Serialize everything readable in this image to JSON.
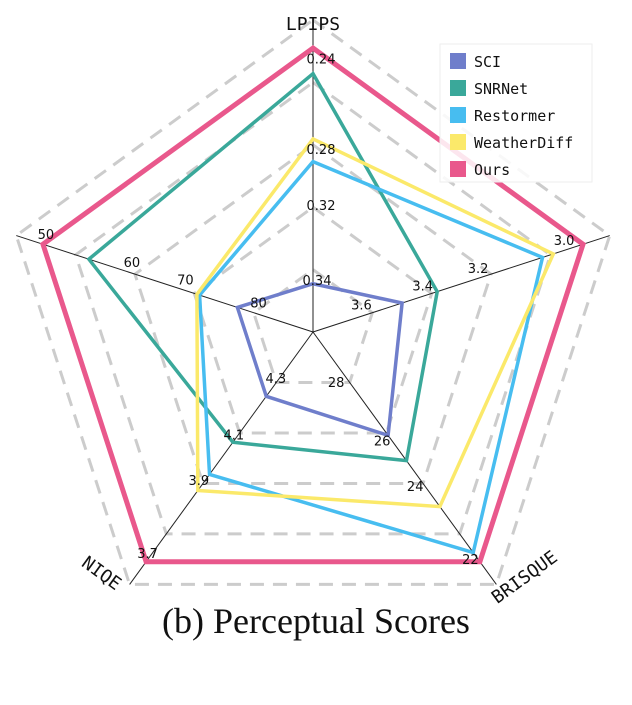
{
  "caption": "(b) Perceptual Scores",
  "chart_data": {
    "type": "radar",
    "axes": [
      {
        "name": "LPIPS",
        "ticks": [
          "0.24",
          "0.28",
          "0.32",
          "0.34"
        ],
        "tick_values": [
          0.24,
          0.28,
          0.32,
          0.34
        ]
      },
      {
        "name": "",
        "ticks": [
          "3.0",
          "3.2",
          "3.4",
          "3.6"
        ],
        "tick_values": [
          3.0,
          3.2,
          3.4,
          3.6
        ]
      },
      {
        "name": "BRISQUE",
        "ticks": [
          "22",
          "24",
          "26",
          "28"
        ],
        "tick_values": [
          22,
          24,
          26,
          28
        ]
      },
      {
        "name": "NIQE",
        "ticks": [
          "3.7",
          "3.9",
          "4.1",
          "4.3"
        ],
        "tick_values": [
          3.7,
          3.9,
          4.1,
          4.3
        ]
      },
      {
        "name": "",
        "ticks": [
          "50",
          "60",
          "70",
          "80"
        ],
        "tick_values": [
          50,
          60,
          70,
          80
        ]
      }
    ],
    "grid": "dashed pentagons",
    "legend_position": "top-right",
    "series": [
      {
        "name": "SCI",
        "color": "#6f7ecb",
        "normalized": [
          0.17,
          0.33,
          0.45,
          0.28,
          0.28
        ]
      },
      {
        "name": "SNRNet",
        "color": "#3aa89a",
        "normalized": [
          0.91,
          0.46,
          0.56,
          0.48,
          0.83
        ]
      },
      {
        "name": "Restormer",
        "color": "#47bdf0",
        "normalized": [
          0.6,
          0.85,
          0.96,
          0.62,
          0.42
        ]
      },
      {
        "name": "WeatherDiff",
        "color": "#fbe96a",
        "normalized": [
          0.68,
          0.89,
          0.76,
          0.69,
          0.43
        ]
      },
      {
        "name": "Ours",
        "color": "#e9588c",
        "normalized": [
          1.0,
          1.0,
          1.0,
          1.0,
          1.0
        ]
      }
    ]
  }
}
